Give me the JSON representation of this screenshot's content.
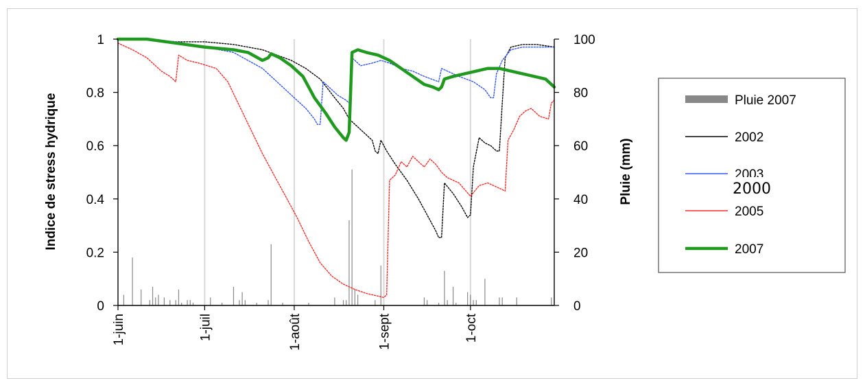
{
  "chart_data": {
    "type": "line",
    "ylabel": "Indice de stress hydrique",
    "y2label": "Pluie (mm)",
    "xlabel": "",
    "ylim": [
      0,
      1
    ],
    "y2lim": [
      0,
      100
    ],
    "x_range_days": [
      0,
      151
    ],
    "y_ticks": [
      "0",
      "0.2",
      "0.4",
      "0.6",
      "0.8",
      "1"
    ],
    "y_tick_values": [
      0,
      0.2,
      0.4,
      0.6,
      0.8,
      1
    ],
    "y2_ticks": [
      "0",
      "20",
      "40",
      "60",
      "80",
      "100"
    ],
    "x_ticks": [
      {
        "label": "1-juin",
        "day": 0
      },
      {
        "label": "1-juil",
        "day": 30
      },
      {
        "label": "1-août",
        "day": 61
      },
      {
        "label": "1-sept",
        "day": 92
      },
      {
        "label": "1-oct",
        "day": 122
      }
    ],
    "grid": "vertical",
    "legend_position": "right",
    "overlay_label": "2000",
    "series": [
      {
        "name": "2002",
        "color": "#000000",
        "width": 1.4,
        "dash": "2,2",
        "points": [
          [
            0,
            1
          ],
          [
            10,
            1
          ],
          [
            20,
            0.99
          ],
          [
            30,
            0.99
          ],
          [
            40,
            0.98
          ],
          [
            50,
            0.96
          ],
          [
            60,
            0.92
          ],
          [
            65,
            0.89
          ],
          [
            70,
            0.85
          ],
          [
            75,
            0.78
          ],
          [
            78,
            0.74
          ],
          [
            80,
            0.7
          ],
          [
            84,
            0.66
          ],
          [
            88,
            0.62
          ],
          [
            89,
            0.58
          ],
          [
            90,
            0.57
          ],
          [
            91,
            0.62
          ],
          [
            93,
            0.58
          ],
          [
            96,
            0.53
          ],
          [
            100,
            0.47
          ],
          [
            104,
            0.4
          ],
          [
            107,
            0.34
          ],
          [
            110,
            0.28
          ],
          [
            111,
            0.255
          ],
          [
            112,
            0.255
          ],
          [
            113,
            0.46
          ],
          [
            116,
            0.42
          ],
          [
            119,
            0.37
          ],
          [
            121,
            0.33
          ],
          [
            122,
            0.34
          ],
          [
            123,
            0.52
          ],
          [
            125,
            0.63
          ],
          [
            127,
            0.61
          ],
          [
            129,
            0.6
          ],
          [
            131,
            0.58
          ],
          [
            132,
            0.58
          ],
          [
            133,
            0.76
          ],
          [
            134,
            0.93
          ],
          [
            136,
            0.97
          ],
          [
            140,
            0.98
          ],
          [
            145,
            0.98
          ],
          [
            151,
            0.97
          ]
        ]
      },
      {
        "name": "2003",
        "color": "#3355ff",
        "width": 1.4,
        "dash": "2,2",
        "points": [
          [
            0,
            1
          ],
          [
            10,
            1
          ],
          [
            20,
            0.99
          ],
          [
            30,
            0.97
          ],
          [
            40,
            0.95
          ],
          [
            50,
            0.89
          ],
          [
            55,
            0.84
          ],
          [
            60,
            0.79
          ],
          [
            65,
            0.74
          ],
          [
            68,
            0.7
          ],
          [
            69,
            0.68
          ],
          [
            70,
            0.68
          ],
          [
            71,
            0.84
          ],
          [
            73,
            0.82
          ],
          [
            76,
            0.79
          ],
          [
            79,
            0.77
          ],
          [
            80,
            0.76
          ],
          [
            81,
            0.93
          ],
          [
            82,
            0.92
          ],
          [
            84,
            0.9
          ],
          [
            88,
            0.91
          ],
          [
            91,
            0.92
          ],
          [
            94,
            0.91
          ],
          [
            98,
            0.89
          ],
          [
            102,
            0.88
          ],
          [
            106,
            0.86
          ],
          [
            111,
            0.84
          ],
          [
            112,
            0.89
          ],
          [
            114,
            0.88
          ],
          [
            118,
            0.86
          ],
          [
            123,
            0.84
          ],
          [
            127,
            0.81
          ],
          [
            129,
            0.78
          ],
          [
            130,
            0.78
          ],
          [
            131,
            0.87
          ],
          [
            133,
            0.92
          ],
          [
            136,
            0.96
          ],
          [
            140,
            0.97
          ],
          [
            151,
            0.97
          ]
        ]
      },
      {
        "name": "2005",
        "color": "#ff2a2a",
        "width": 1.4,
        "dash": "2,2",
        "points": [
          [
            0,
            0.985
          ],
          [
            5,
            0.96
          ],
          [
            10,
            0.93
          ],
          [
            15,
            0.88
          ],
          [
            18,
            0.86
          ],
          [
            20,
            0.84
          ],
          [
            21,
            0.94
          ],
          [
            24,
            0.92
          ],
          [
            28,
            0.91
          ],
          [
            34,
            0.89
          ],
          [
            38,
            0.84
          ],
          [
            42,
            0.75
          ],
          [
            46,
            0.66
          ],
          [
            50,
            0.57
          ],
          [
            54,
            0.49
          ],
          [
            58,
            0.41
          ],
          [
            62,
            0.33
          ],
          [
            66,
            0.24
          ],
          [
            70,
            0.16
          ],
          [
            74,
            0.11
          ],
          [
            78,
            0.08
          ],
          [
            82,
            0.06
          ],
          [
            86,
            0.045
          ],
          [
            90,
            0.035
          ],
          [
            92,
            0.03
          ],
          [
            93,
            0.04
          ],
          [
            94,
            0.47
          ],
          [
            96,
            0.49
          ],
          [
            98,
            0.54
          ],
          [
            100,
            0.52
          ],
          [
            102,
            0.56
          ],
          [
            104,
            0.54
          ],
          [
            106,
            0.52
          ],
          [
            108,
            0.55
          ],
          [
            110,
            0.53
          ],
          [
            112,
            0.5
          ],
          [
            114,
            0.48
          ],
          [
            118,
            0.46
          ],
          [
            122,
            0.41
          ],
          [
            125,
            0.45
          ],
          [
            128,
            0.46
          ],
          [
            132,
            0.44
          ],
          [
            134,
            0.43
          ],
          [
            135,
            0.62
          ],
          [
            137,
            0.66
          ],
          [
            139,
            0.71
          ],
          [
            141,
            0.73
          ],
          [
            143,
            0.74
          ],
          [
            146,
            0.71
          ],
          [
            149,
            0.7
          ],
          [
            150,
            0.76
          ],
          [
            151,
            0.77
          ]
        ]
      },
      {
        "name": "2007",
        "color": "#1f9a1f",
        "width": 4.5,
        "dash": "",
        "points": [
          [
            0,
            1
          ],
          [
            10,
            1
          ],
          [
            20,
            0.985
          ],
          [
            30,
            0.97
          ],
          [
            40,
            0.96
          ],
          [
            45,
            0.95
          ],
          [
            50,
            0.92
          ],
          [
            52,
            0.93
          ],
          [
            53,
            0.945
          ],
          [
            56,
            0.93
          ],
          [
            60,
            0.9
          ],
          [
            64,
            0.86
          ],
          [
            68,
            0.78
          ],
          [
            72,
            0.72
          ],
          [
            75,
            0.67
          ],
          [
            78,
            0.63
          ],
          [
            79,
            0.62
          ],
          [
            80,
            0.65
          ],
          [
            81,
            0.95
          ],
          [
            83,
            0.96
          ],
          [
            86,
            0.95
          ],
          [
            90,
            0.94
          ],
          [
            94,
            0.92
          ],
          [
            98,
            0.89
          ],
          [
            102,
            0.86
          ],
          [
            106,
            0.83
          ],
          [
            109,
            0.82
          ],
          [
            111,
            0.81
          ],
          [
            112,
            0.82
          ],
          [
            113,
            0.85
          ],
          [
            116,
            0.86
          ],
          [
            120,
            0.87
          ],
          [
            124,
            0.88
          ],
          [
            128,
            0.89
          ],
          [
            132,
            0.89
          ],
          [
            136,
            0.88
          ],
          [
            140,
            0.87
          ],
          [
            144,
            0.86
          ],
          [
            148,
            0.85
          ],
          [
            151,
            0.82
          ]
        ]
      }
    ],
    "rain": {
      "name": "Pluie 2007",
      "color": "#888888",
      "bars": [
        [
          2,
          4
        ],
        [
          5,
          18
        ],
        [
          8,
          6
        ],
        [
          11,
          2
        ],
        [
          12,
          7
        ],
        [
          13,
          3
        ],
        [
          14,
          4
        ],
        [
          16,
          3
        ],
        [
          18,
          2
        ],
        [
          20,
          2
        ],
        [
          21,
          6
        ],
        [
          22,
          1
        ],
        [
          24,
          2
        ],
        [
          25,
          2
        ],
        [
          26,
          1
        ],
        [
          32,
          3
        ],
        [
          36,
          1
        ],
        [
          40,
          7
        ],
        [
          42,
          2
        ],
        [
          43,
          5
        ],
        [
          44,
          2
        ],
        [
          48,
          1
        ],
        [
          52,
          2
        ],
        [
          53,
          23
        ],
        [
          57,
          1
        ],
        [
          66,
          1
        ],
        [
          75,
          3
        ],
        [
          78,
          2
        ],
        [
          79,
          2
        ],
        [
          80,
          32
        ],
        [
          81,
          51
        ],
        [
          82,
          6
        ],
        [
          83,
          4
        ],
        [
          89,
          2
        ],
        [
          91,
          15
        ],
        [
          106,
          3
        ],
        [
          107,
          2
        ],
        [
          111,
          1
        ],
        [
          113,
          13
        ],
        [
          114,
          2
        ],
        [
          116,
          7
        ],
        [
          117,
          1
        ],
        [
          121,
          5
        ],
        [
          122,
          4
        ],
        [
          123,
          2
        ],
        [
          124,
          2
        ],
        [
          127,
          10
        ],
        [
          132,
          3
        ],
        [
          133,
          3
        ],
        [
          138,
          3
        ],
        [
          150,
          3
        ]
      ]
    }
  },
  "legend": {
    "items": [
      {
        "label": "Pluie 2007",
        "kind": "bar",
        "color": "#888888"
      },
      {
        "label": "2002",
        "kind": "line",
        "color": "#000000",
        "width": 1.4
      },
      {
        "label": "2003",
        "kind": "line",
        "color": "#3355ff",
        "width": 1.4
      },
      {
        "label": "2005",
        "kind": "line",
        "color": "#ff2a2a",
        "width": 1.4
      },
      {
        "label": "2007",
        "kind": "line",
        "color": "#1f9a1f",
        "width": 4.5
      }
    ]
  }
}
